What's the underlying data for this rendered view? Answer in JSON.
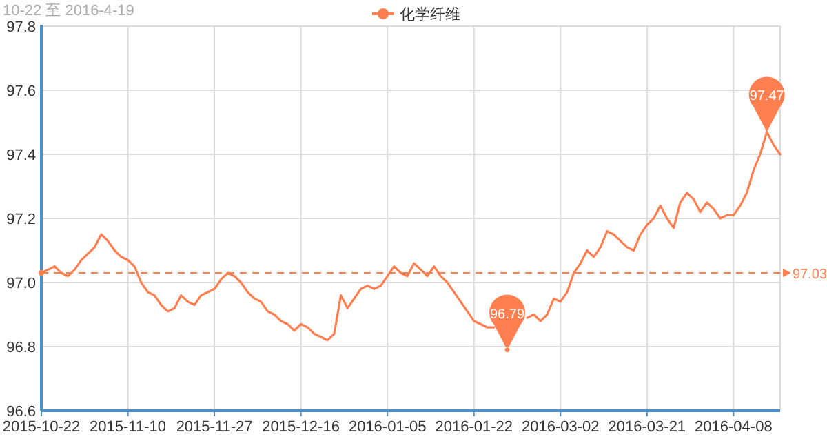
{
  "chart_data": {
    "type": "line",
    "title": "10-22 至 2016-4-19",
    "categories": [
      "2015-10-22",
      null,
      null,
      null,
      null,
      null,
      null,
      null,
      null,
      null,
      null,
      null,
      null,
      "2015-11-10",
      null,
      null,
      null,
      null,
      null,
      null,
      null,
      null,
      null,
      null,
      null,
      null,
      "2015-11-27",
      null,
      null,
      null,
      null,
      null,
      null,
      null,
      null,
      null,
      null,
      null,
      null,
      "2015-12-16",
      null,
      null,
      null,
      null,
      null,
      null,
      null,
      null,
      null,
      null,
      null,
      null,
      "2016-01-05",
      null,
      null,
      null,
      null,
      null,
      null,
      null,
      null,
      null,
      null,
      null,
      null,
      "2016-01-22",
      null,
      null,
      null,
      null,
      null,
      null,
      null,
      null,
      null,
      null,
      null,
      null,
      "2016-03-02",
      null,
      null,
      null,
      null,
      null,
      null,
      null,
      null,
      null,
      null,
      null,
      null,
      "2016-03-21",
      null,
      null,
      null,
      null,
      null,
      null,
      null,
      null,
      null,
      null,
      null,
      null,
      "2016-04-08",
      null,
      null,
      null,
      null,
      null,
      null,
      null
    ],
    "series": [
      {
        "name": "化学纤维",
        "color": "#ff7f50",
        "values": [
          97.03,
          97.04,
          97.05,
          97.03,
          97.02,
          97.04,
          97.07,
          97.09,
          97.11,
          97.15,
          97.13,
          97.1,
          97.08,
          97.07,
          97.05,
          97.0,
          96.97,
          96.96,
          96.93,
          96.91,
          96.92,
          96.96,
          96.94,
          96.93,
          96.96,
          96.97,
          96.98,
          97.01,
          97.03,
          97.02,
          97.0,
          96.97,
          96.95,
          96.94,
          96.91,
          96.9,
          96.88,
          96.87,
          96.85,
          96.87,
          96.86,
          96.84,
          96.83,
          96.82,
          96.84,
          96.96,
          96.92,
          96.95,
          96.98,
          96.99,
          96.98,
          96.99,
          97.02,
          97.05,
          97.03,
          97.02,
          97.06,
          97.04,
          97.02,
          97.05,
          97.02,
          97.0,
          96.97,
          96.94,
          96.91,
          96.88,
          96.87,
          96.86,
          96.86,
          null,
          96.79,
          null,
          null,
          96.89,
          96.9,
          96.88,
          96.9,
          96.95,
          96.94,
          96.97,
          97.03,
          97.06,
          97.1,
          97.08,
          97.11,
          97.16,
          97.15,
          97.13,
          97.11,
          97.1,
          97.15,
          97.18,
          97.2,
          97.24,
          97.2,
          97.17,
          97.25,
          97.28,
          97.26,
          97.22,
          97.25,
          97.23,
          97.2,
          97.21,
          97.21,
          97.24,
          97.28,
          97.35,
          97.4,
          97.47,
          97.43,
          97.4
        ]
      }
    ],
    "ylim": [
      96.6,
      97.8
    ],
    "yticks": [
      96.6,
      96.8,
      {
        "value": 97.0,
        "label": "97.0"
      },
      97.2,
      97.4,
      97.6,
      97.8
    ],
    "grid": true,
    "legend": "top",
    "ref_lines": [
      {
        "axis": "y",
        "value": 97.03,
        "label": "97.03",
        "color": "#ff7f50",
        "line_style": "dashed"
      }
    ],
    "annotations": [
      {
        "text": "96.79",
        "y": 96.79
      },
      {
        "text": "97.47",
        "y": 97.47
      }
    ]
  }
}
